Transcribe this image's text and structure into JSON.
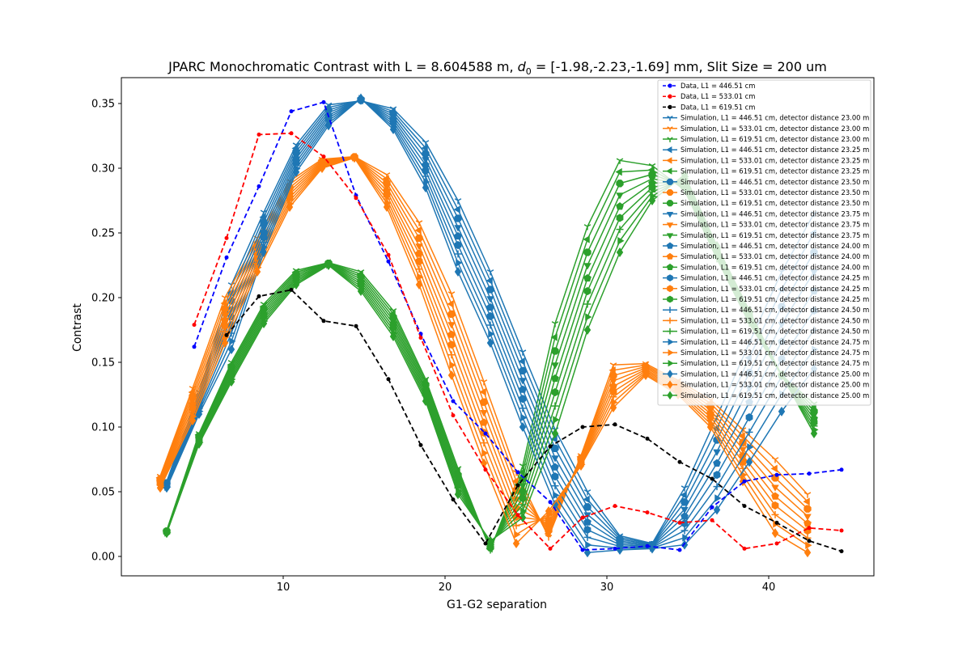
{
  "chart_data": {
    "type": "line",
    "title": "JPARC Monochromatic Contrast with L = 8.604588 m, d0 = [-1.98,-2.23,-1.69] mm, Slit Size = 200 um",
    "title_parts": {
      "prefix": "JPARC Monochromatic Contrast with L = 8.604588 m, ",
      "d_symbol": "d",
      "d_subscript": "0",
      "suffix": " = [-1.98,-2.23,-1.69] mm, Slit Size = 200 um"
    },
    "xlabel": "G1-G2 separation",
    "ylabel": "Contrast",
    "xlim": [
      0.0,
      46.5
    ],
    "ylim": [
      -0.015,
      0.37
    ],
    "xticks": [
      10,
      20,
      30,
      40
    ],
    "yticks": [
      0.0,
      0.05,
      0.1,
      0.15,
      0.2,
      0.25,
      0.3,
      0.35
    ],
    "ytick_labels": [
      "0.00",
      "0.05",
      "0.10",
      "0.15",
      "0.20",
      "0.25",
      "0.30",
      "0.35"
    ],
    "legend_position": "top-right",
    "grid": false,
    "colors": {
      "blue": "#1f77b4",
      "orange": "#ff7f0e",
      "green": "#2ca02c",
      "data_blue": "#0000ff",
      "data_red": "#ff0000",
      "data_black": "#000000"
    },
    "data_series": [
      {
        "name": "Data, L1 = 446.51 cm",
        "color": "#0000ff",
        "x": [
          4.5,
          6.5,
          8.5,
          10.5,
          12.5,
          14.5,
          16.5,
          18.5,
          20.5,
          22.5,
          24.5,
          26.5,
          28.5,
          30.5,
          32.5,
          34.5,
          36.5,
          38.5,
          40.5,
          42.5,
          44.5
        ],
        "y": [
          0.162,
          0.231,
          0.286,
          0.344,
          0.351,
          0.279,
          0.228,
          0.172,
          0.12,
          0.095,
          0.065,
          0.042,
          0.005,
          0.006,
          0.008,
          0.005,
          0.038,
          0.058,
          0.063,
          0.064,
          0.067
        ]
      },
      {
        "name": "Data, L1 = 533.01 cm",
        "color": "#ff0000",
        "x": [
          4.5,
          6.5,
          8.5,
          10.5,
          12.5,
          14.5,
          16.5,
          18.5,
          20.5,
          22.5,
          24.5,
          26.5,
          28.5,
          30.5,
          32.5,
          34.5,
          36.5,
          38.5,
          40.5,
          42.5,
          44.5
        ],
        "y": [
          0.179,
          0.246,
          0.326,
          0.327,
          0.309,
          0.277,
          0.233,
          0.169,
          0.109,
          0.067,
          0.032,
          0.006,
          0.03,
          0.039,
          0.034,
          0.026,
          0.028,
          0.006,
          0.01,
          0.022,
          0.02
        ]
      },
      {
        "name": "Data, L1 = 619.51 cm",
        "color": "#000000",
        "x": [
          6.5,
          8.5,
          10.5,
          12.5,
          14.5,
          16.5,
          18.5,
          20.5,
          22.5,
          24.5,
          26.5,
          28.5,
          30.5,
          32.5,
          34.5,
          36.5,
          38.5,
          40.5,
          42.5,
          44.5
        ],
        "y": [
          0.171,
          0.201,
          0.206,
          0.182,
          0.178,
          0.137,
          0.086,
          0.044,
          0.01,
          0.055,
          0.085,
          0.1,
          0.102,
          0.091,
          0.073,
          0.06,
          0.039,
          0.026,
          0.012,
          0.004
        ]
      }
    ],
    "sim_series": [
      {
        "name": "Simulation, L1 = 446.51 cm, detector distance 23.00 m",
        "color": "#1f77b4",
        "marker": "tri-down"
      },
      {
        "name": "Simulation, L1 = 533.01 cm, detector distance 23.00 m",
        "color": "#ff7f0e",
        "marker": "tri-down"
      },
      {
        "name": "Simulation, L1 = 619.51 cm, detector distance 23.00 m",
        "color": "#2ca02c",
        "marker": "tri-down"
      },
      {
        "name": "Simulation, L1 = 446.51 cm, detector distance 23.25 m",
        "color": "#1f77b4",
        "marker": "triangle-left"
      },
      {
        "name": "Simulation, L1 = 533.01 cm, detector distance 23.25 m",
        "color": "#ff7f0e",
        "marker": "triangle-left"
      },
      {
        "name": "Simulation, L1 = 619.51 cm, detector distance 23.25 m",
        "color": "#2ca02c",
        "marker": "triangle-left"
      },
      {
        "name": "Simulation, L1 = 446.51 cm, detector distance 23.50 m",
        "color": "#1f77b4",
        "marker": "octagon"
      },
      {
        "name": "Simulation, L1 = 533.01 cm, detector distance 23.50 m",
        "color": "#ff7f0e",
        "marker": "octagon"
      },
      {
        "name": "Simulation, L1 = 619.51 cm, detector distance 23.50 m",
        "color": "#2ca02c",
        "marker": "octagon"
      },
      {
        "name": "Simulation, L1 = 446.51 cm, detector distance 23.75 m",
        "color": "#1f77b4",
        "marker": "triangle-down"
      },
      {
        "name": "Simulation, L1 = 533.01 cm, detector distance 23.75 m",
        "color": "#ff7f0e",
        "marker": "triangle-down"
      },
      {
        "name": "Simulation, L1 = 619.51 cm, detector distance 23.75 m",
        "color": "#2ca02c",
        "marker": "triangle-down"
      },
      {
        "name": "Simulation, L1 = 446.51 cm, detector distance 24.00 m",
        "color": "#1f77b4",
        "marker": "pentagon"
      },
      {
        "name": "Simulation, L1 = 533.01 cm, detector distance 24.00 m",
        "color": "#ff7f0e",
        "marker": "pentagon"
      },
      {
        "name": "Simulation, L1 = 619.51 cm, detector distance 24.00 m",
        "color": "#2ca02c",
        "marker": "pentagon"
      },
      {
        "name": "Simulation, L1 = 446.51 cm, detector distance 24.25 m",
        "color": "#1f77b4",
        "marker": "hexagon"
      },
      {
        "name": "Simulation, L1 = 533.01 cm, detector distance 24.25 m",
        "color": "#ff7f0e",
        "marker": "hexagon"
      },
      {
        "name": "Simulation, L1 = 619.51 cm, detector distance 24.25 m",
        "color": "#2ca02c",
        "marker": "hexagon"
      },
      {
        "name": "Simulation, L1 = 446.51 cm, detector distance 24.50 m",
        "color": "#1f77b4",
        "marker": "plus"
      },
      {
        "name": "Simulation, L1 = 533.01 cm, detector distance 24.50 m",
        "color": "#ff7f0e",
        "marker": "plus"
      },
      {
        "name": "Simulation, L1 = 619.51 cm, detector distance 24.50 m",
        "color": "#2ca02c",
        "marker": "plus"
      },
      {
        "name": "Simulation, L1 = 446.51 cm, detector distance 24.75 m",
        "color": "#1f77b4",
        "marker": "triangle-right"
      },
      {
        "name": "Simulation, L1 = 533.01 cm, detector distance 24.75 m",
        "color": "#ff7f0e",
        "marker": "triangle-right"
      },
      {
        "name": "Simulation, L1 = 619.51 cm, detector distance 24.75 m",
        "color": "#2ca02c",
        "marker": "triangle-right"
      },
      {
        "name": "Simulation, L1 = 446.51 cm, detector distance 25.00 m",
        "color": "#1f77b4",
        "marker": "diamond"
      },
      {
        "name": "Simulation, L1 = 533.01 cm, detector distance 25.00 m",
        "color": "#ff7f0e",
        "marker": "diamond"
      },
      {
        "name": "Simulation, L1 = 619.51 cm, detector distance 25.00 m",
        "color": "#2ca02c",
        "marker": "diamond"
      }
    ],
    "sim_x": {
      "446.51": [
        2.8,
        4.8,
        6.8,
        8.8,
        10.8,
        12.8,
        14.8,
        16.8,
        18.8,
        20.8,
        22.8,
        24.8,
        26.8,
        28.8,
        30.8,
        32.8,
        34.8,
        36.8,
        38.8,
        40.8,
        42.8
      ],
      "533.01": [
        2.4,
        4.4,
        6.4,
        8.4,
        10.4,
        12.4,
        14.4,
        16.4,
        18.4,
        20.4,
        22.4,
        24.4,
        26.4,
        28.4,
        30.4,
        32.4,
        34.4,
        36.4,
        38.4,
        40.4,
        42.4
      ],
      "619.51": [
        2.8,
        4.8,
        6.8,
        8.8,
        10.8,
        12.8,
        14.8,
        16.8,
        18.8,
        20.8,
        22.8,
        24.8,
        26.8,
        28.8,
        30.8,
        32.8,
        34.8,
        36.8,
        38.8,
        40.8,
        42.8
      ]
    },
    "sim_y_first": {
      "446.51": [
        0.058,
        0.127,
        0.21,
        0.266,
        0.318,
        0.349,
        0.352,
        0.346,
        0.32,
        0.275,
        0.22,
        0.158,
        0.098,
        0.05,
        0.016,
        0.01,
        0.053,
        0.108,
        0.165,
        0.22,
        0.265
      ],
      "533.01": [
        0.062,
        0.13,
        0.2,
        0.246,
        0.29,
        0.307,
        0.309,
        0.295,
        0.258,
        0.203,
        0.135,
        0.065,
        0.015,
        0.078,
        0.148,
        0.149,
        0.136,
        0.121,
        0.098,
        0.075,
        0.048
      ],
      "619.51": [
        0.02,
        0.095,
        0.15,
        0.195,
        0.221,
        0.227,
        0.22,
        0.19,
        0.137,
        0.068,
        0.005,
        0.07,
        0.18,
        0.255,
        0.306,
        0.302,
        0.283,
        0.23,
        0.18,
        0.14,
        0.118
      ]
    },
    "sim_y_last": {
      "446.51": [
        0.053,
        0.11,
        0.16,
        0.235,
        0.297,
        0.333,
        0.354,
        0.33,
        0.285,
        0.22,
        0.165,
        0.1,
        0.04,
        0.003,
        0.005,
        0.006,
        0.009,
        0.036,
        0.073,
        0.112,
        0.145
      ],
      "533.01": [
        0.053,
        0.105,
        0.165,
        0.22,
        0.27,
        0.3,
        0.308,
        0.27,
        0.21,
        0.14,
        0.072,
        0.01,
        0.035,
        0.07,
        0.115,
        0.14,
        0.125,
        0.1,
        0.058,
        0.018,
        0.003
      ],
      "619.51": [
        0.018,
        0.087,
        0.135,
        0.18,
        0.21,
        0.225,
        0.205,
        0.17,
        0.12,
        0.048,
        0.012,
        0.03,
        0.095,
        0.175,
        0.235,
        0.275,
        0.295,
        0.24,
        0.19,
        0.14,
        0.095
      ]
    }
  }
}
